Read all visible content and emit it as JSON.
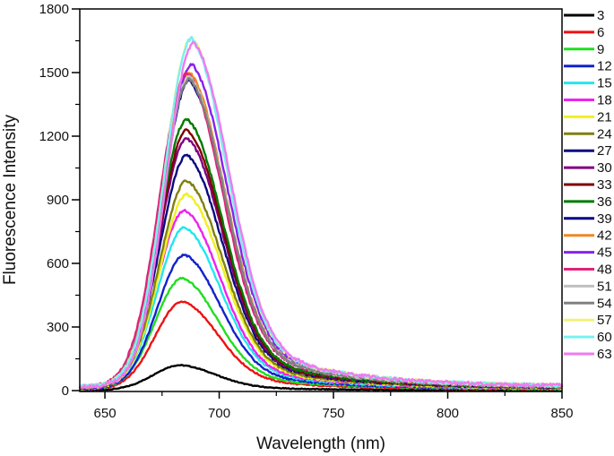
{
  "chart_data": {
    "type": "line",
    "title": "",
    "xlabel": "Wavelength (nm)",
    "ylabel": "Fluorescence Intensity",
    "xlim": [
      639,
      850
    ],
    "ylim": [
      0,
      1800
    ],
    "xticks": [
      650,
      700,
      750,
      800,
      850
    ],
    "xtick_labels": [
      "650",
      "700",
      "750",
      "800",
      "850"
    ],
    "yticks": [
      0,
      300,
      600,
      900,
      1200,
      1500,
      1800
    ],
    "ytick_labels": [
      "0",
      "300",
      "600",
      "900",
      "1200",
      "1500",
      "1800"
    ],
    "grid": false,
    "legend_position": "right",
    "series": [
      {
        "name": "3",
        "color": "#000000",
        "peak_x": 683,
        "peak": 120
      },
      {
        "name": "6",
        "color": "#ee1111",
        "peak_x": 684,
        "peak": 420
      },
      {
        "name": "9",
        "color": "#22dd22",
        "peak_x": 684,
        "peak": 530
      },
      {
        "name": "12",
        "color": "#1122cc",
        "peak_x": 685,
        "peak": 640
      },
      {
        "name": "15",
        "color": "#22e6ee",
        "peak_x": 685,
        "peak": 770
      },
      {
        "name": "18",
        "color": "#ee22ee",
        "peak_x": 685,
        "peak": 850
      },
      {
        "name": "21",
        "color": "#f0f022",
        "peak_x": 686,
        "peak": 925
      },
      {
        "name": "24",
        "color": "#808010",
        "peak_x": 686,
        "peak": 990
      },
      {
        "name": "27",
        "color": "#0a0a80",
        "peak_x": 686,
        "peak": 1110
      },
      {
        "name": "30",
        "color": "#800080",
        "peak_x": 686,
        "peak": 1190
      },
      {
        "name": "33",
        "color": "#800000",
        "peak_x": 686,
        "peak": 1230
      },
      {
        "name": "36",
        "color": "#007a00",
        "peak_x": 686,
        "peak": 1280
      },
      {
        "name": "39",
        "color": "#000088",
        "peak_x": 687,
        "peak": 1460
      },
      {
        "name": "42",
        "color": "#ee8822",
        "peak_x": 687,
        "peak": 1500
      },
      {
        "name": "45",
        "color": "#8822ee",
        "peak_x": 688,
        "peak": 1540
      },
      {
        "name": "48",
        "color": "#e0227a",
        "peak_x": 686,
        "peak": 1495
      },
      {
        "name": "51",
        "color": "#c0c0c0",
        "peak_x": 687,
        "peak": 1480
      },
      {
        "name": "54",
        "color": "#808080",
        "peak_x": 687,
        "peak": 1470
      },
      {
        "name": "57",
        "color": "#f2f27a",
        "peak_x": 688,
        "peak": 1665
      },
      {
        "name": "60",
        "color": "#7af0f0",
        "peak_x": 688,
        "peak": 1660
      },
      {
        "name": "63",
        "color": "#f07af0",
        "peak_x": 689,
        "peak": 1640
      }
    ]
  }
}
